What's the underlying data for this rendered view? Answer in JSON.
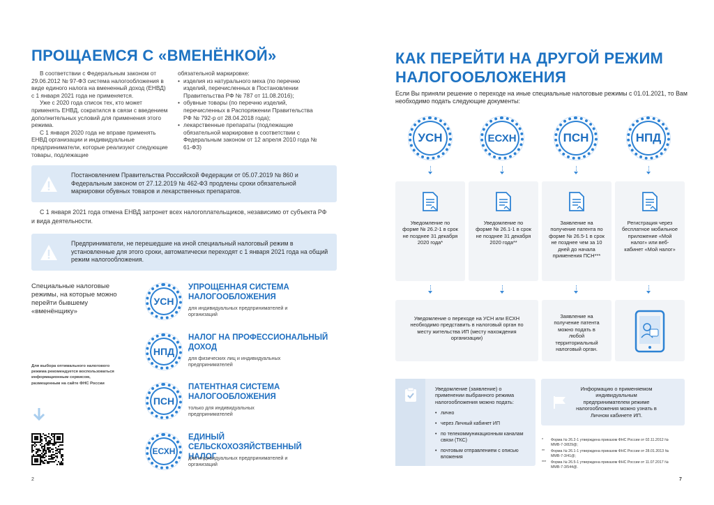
{
  "left": {
    "title": "ПРОЩАЕМСЯ С «ВМЕНЁНКОЙ»",
    "col1": [
      "В соответствии с Федеральным законом от 29.06.2012 № 97-ФЗ система налогообложения в виде единого налога на вмененный доход (ЕНВД) с 1 января 2021 года не применяется.",
      "Уже с 2020 года список тех, кто может применять ЕНВД, сократился в связи с введением дополнительных условий для применения этого режима.",
      "С 1 января 2020 года не вправе применять ЕНВД организации и индивидуальные предприниматели, которые реализуют следующие товары, подлежащие"
    ],
    "col2": {
      "lead": "обязательной маркировке:",
      "items": [
        "изделия из натурального меха (по перечню изделий, перечисленных в Постановлении Правительства РФ № 787 от 11.08.2016);",
        "обувные товары (по перечню изделий, перечисленных в Распоряжении Правительства РФ № 792-р от 28.04.2018 года);",
        "лекарственные препараты (подлежащие обязательной маркировке в соответствии с Федеральным законом от 12 апреля 2010 года № 61-ФЗ)"
      ]
    },
    "notice1": "Постановлением Правительства Российской Федерации от 05.07.2019 № 860 и Федеральным законом от 27.12.2019 № 462-ФЗ продлены сроки обязательной маркировки обувных товаров и лекарственных препаратов.",
    "paragraph": "С 1 января 2021 года отмена ЕНВД затронет всех налогоплательщиков, независимо от субъекта РФ и вида деятельности.",
    "notice2": "Предприниматели, не перешедшие на иной специальный налоговый режим в установленные для этого сроки, автоматически переходят с 1 января 2021 года на общий режим налогообложения.",
    "regimes_intro": "Специальные налоговые режимы, на которые можно перейти бывшему «вменёнщику»",
    "hint": "Для выбора оптимального налогового режима рекомендуется воспользоваться информационным сервисом, размещенным на сайте ФНС России",
    "regimes": [
      {
        "badge": "УСН",
        "title": "УПРОЩЕННАЯ СИСТЕМА НАЛОГООБЛОЖЕНИЯ",
        "text": "для индивидуальных предпринимателей и организаций"
      },
      {
        "badge": "НПД",
        "title": "НАЛОГ НА ПРОФЕССИОНАЛЬНЫЙ ДОХОД",
        "text": "для физических лиц и индивидуальных предпринимателей"
      },
      {
        "badge": "ПСН",
        "title": "ПАТЕНТНАЯ СИСТЕМА НАЛОГООБЛОЖЕНИЯ",
        "text": "только для индивидуальных предпринимателей"
      },
      {
        "badge": "ЕСХН",
        "title": "ЕДИНЫЙ СЕЛЬСКОХОЗЯЙСТВЕННЫЙ НАЛОГ",
        "text": "для индивидуальных предпринимателей и организаций"
      }
    ],
    "page_number": "2"
  },
  "right": {
    "title": "КАК ПЕРЕЙТИ НА ДРУГОЙ РЕЖИМ НАЛОГООБЛОЖЕНИЯ",
    "intro": "Если Вы приняли решение о переходе на иные специальные налоговые режимы с 01.01.2021, то Вам необходимо подать следующие документы:",
    "badges": [
      "УСН",
      "ЕСХН",
      "ПСН",
      "НПД"
    ],
    "documents": [
      "Уведомление по форме № 26.2-1 в срок не позднее 31 декабря 2020 года*",
      "Уведомление по форме № 26.1-1 в срок не позднее 31 декабря 2020 года**",
      "Заявление на получение патента по форме № 26.5-1 в срок не позднее чем за 10 дней до начала применения ПСН***",
      "Регистрация через бесплатное мобильное приложение «Мой налог» или веб-кабинет «Мой налог»"
    ],
    "submission": [
      "Уведомление о переходе на УСН или ЕСХН необходимо представить в налоговый орган по месту жительства ИП (месту нахождения организации)",
      "Заявление на получение патента можно подать в любой территориальный налоговый орган."
    ],
    "methods": {
      "lead": "Уведомление (заявление) о применении выбранного режима налогообложения можно подать:",
      "items": [
        "лично",
        "через Личный кабинет ИП",
        "по телекоммуникационным каналам связи (ТКС)",
        "почтовым отправлением с описью вложения"
      ]
    },
    "info": "Информацию о применяемом индивидуальным предпринимателем режиме налогообложения можно узнать в Личном кабинете ИП.",
    "footnotes": [
      {
        "mark": "*",
        "text": "Форма № 26.2-1 утверждена приказом ФНС России от 02.11.2012 № ММВ-7-3/829@;"
      },
      {
        "mark": "**",
        "text": "Форма № 26.1-1 утверждена приказом ФНС России от 28.01.2013 № ММВ-7-3/41@;"
      },
      {
        "mark": "***",
        "text": "Форма № 26.5-1 утверждена приказом ФНС России от 11.07.2017 № ММВ-7-3/544@."
      }
    ],
    "page_number": "7"
  }
}
